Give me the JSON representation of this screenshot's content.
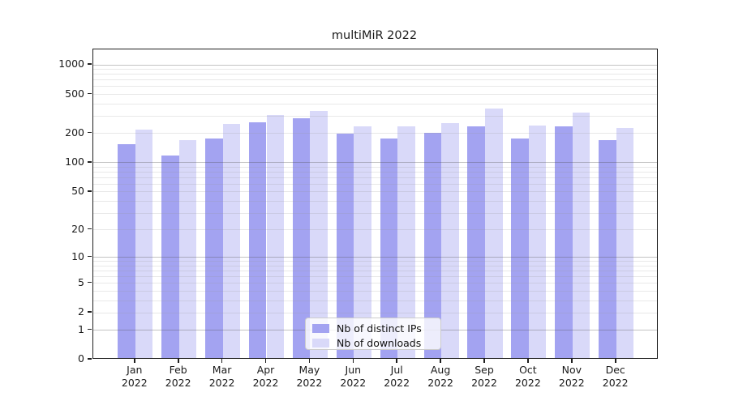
{
  "title": "multiMiR 2022",
  "chart_data": {
    "type": "bar",
    "title": "multiMiR 2022",
    "months": [
      "Jan",
      "Feb",
      "Mar",
      "Apr",
      "May",
      "Jun",
      "Jul",
      "Aug",
      "Sep",
      "Oct",
      "Nov",
      "Dec"
    ],
    "year": "2022",
    "categories": [
      "Jan 2022",
      "Feb 2022",
      "Mar 2022",
      "Apr 2022",
      "May 2022",
      "Jun 2022",
      "Jul 2022",
      "Aug 2022",
      "Sep 2022",
      "Oct 2022",
      "Nov 2022",
      "Dec 2022"
    ],
    "series": [
      {
        "name": "Nb of distinct IPs",
        "color": "#a3a3f1",
        "values": [
          150,
          114,
          172,
          249,
          274,
          193,
          170,
          196,
          229,
          171,
          229,
          165
        ]
      },
      {
        "name": "Nb of downloads",
        "color": "#d9d9f9",
        "values": [
          210,
          163,
          240,
          296,
          327,
          228,
          228,
          243,
          346,
          231,
          313,
          220
        ]
      }
    ],
    "xlabel": "",
    "ylabel": "",
    "yscale": "log1p",
    "y_ticks": [
      1000,
      500,
      200,
      100,
      50,
      20,
      10,
      5,
      2,
      1,
      0
    ],
    "y_major_gridlines": [
      1000,
      100,
      10,
      1
    ],
    "y_minor_gridlines": [
      900,
      800,
      700,
      600,
      400,
      300,
      90,
      80,
      70,
      60,
      40,
      30,
      9,
      8,
      7,
      6,
      4,
      3
    ],
    "ylim": [
      0,
      1400
    ],
    "grid": "on",
    "legend_position": "lower center"
  }
}
